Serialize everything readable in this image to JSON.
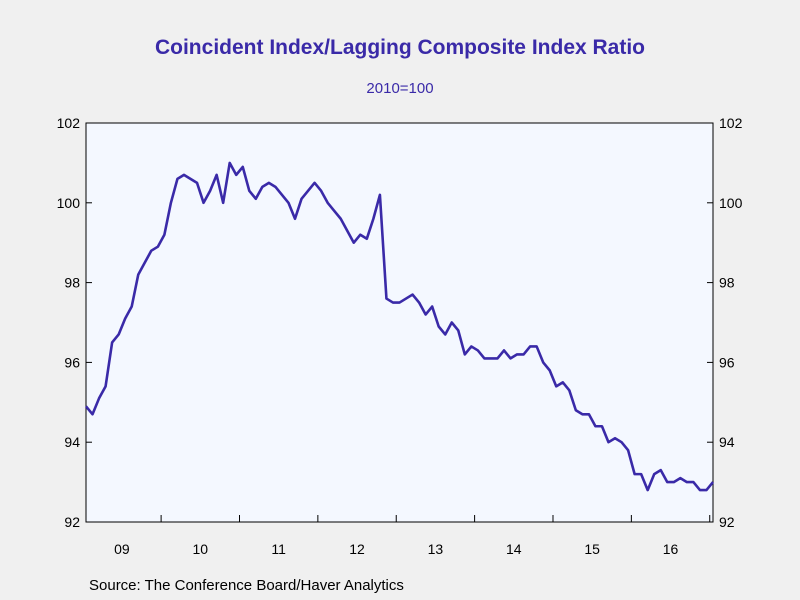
{
  "chart_data": {
    "type": "line",
    "title": "Coincident Index/Lagging Composite Index Ratio",
    "subtitle": "2010=100",
    "source": "Source:  The Conference Board/Haver Analytics",
    "ylim": [
      92,
      102
    ],
    "yticks": [
      92,
      94,
      96,
      98,
      100,
      102
    ],
    "ytick_labels": [
      "92",
      "94",
      "96",
      "98",
      "100",
      "102"
    ],
    "x_start_year": 2009,
    "x_start_month": 1,
    "x_months": 97,
    "x_tick_labels": [
      "09",
      "10",
      "11",
      "12",
      "13",
      "14",
      "15",
      "16"
    ],
    "line_color": "#3a2aa8",
    "grid": false,
    "series": [
      {
        "values": [
          94.9,
          94.7,
          95.1,
          95.4,
          96.5,
          96.7,
          97.1,
          97.4,
          98.2,
          98.5,
          98.8,
          98.9,
          99.2,
          100.0,
          100.6,
          100.7,
          100.6,
          100.5,
          100.0,
          100.3,
          100.7,
          100.0,
          101.0,
          100.7,
          100.9,
          100.3,
          100.1,
          100.4,
          100.5,
          100.4,
          100.2,
          100.0,
          99.6,
          100.1,
          100.3,
          100.5,
          100.3,
          100.0,
          99.8,
          99.6,
          99.3,
          99.0,
          99.2,
          99.1,
          99.6,
          100.2,
          97.6,
          97.5,
          97.5,
          97.6,
          97.7,
          97.5,
          97.2,
          97.4,
          96.9,
          96.7,
          97.0,
          96.8,
          96.2,
          96.4,
          96.3,
          96.1,
          96.1,
          96.1,
          96.3,
          96.1,
          96.2,
          96.2,
          96.4,
          96.4,
          96.0,
          95.8,
          95.4,
          95.5,
          95.3,
          94.8,
          94.7,
          94.7,
          94.4,
          94.4,
          94.0,
          94.1,
          94.0,
          93.8,
          93.2,
          93.2,
          92.8,
          93.2,
          93.3,
          93.0,
          93.0,
          93.1,
          93.0,
          93.0,
          92.8,
          92.8,
          93.0
        ]
      }
    ]
  }
}
